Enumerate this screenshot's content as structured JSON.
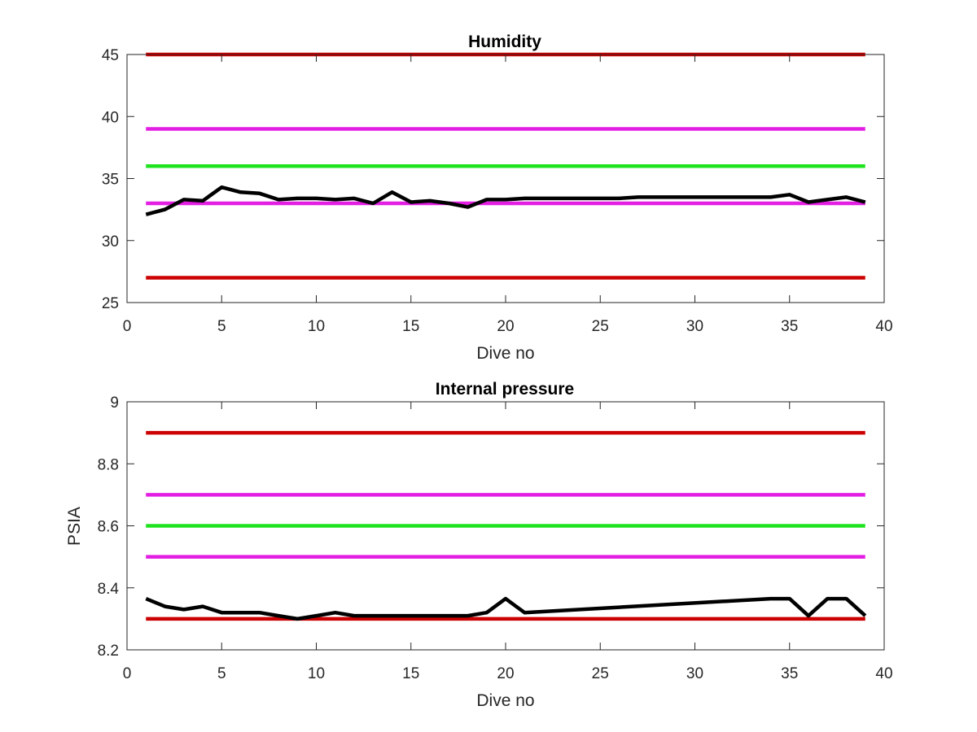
{
  "figure": {
    "background": "#ffffff"
  },
  "chart_data": [
    {
      "type": "line",
      "title": "Humidity",
      "xlabel": "Dive no",
      "ylabel": "",
      "xlim": [
        0,
        40
      ],
      "ylim": [
        25,
        45
      ],
      "xticks": [
        0,
        5,
        10,
        15,
        20,
        25,
        30,
        35,
        40
      ],
      "yticks": [
        25,
        30,
        35,
        40,
        45
      ],
      "grid": false,
      "legend": "none",
      "thresholds": [
        {
          "value": 45,
          "x_range": [
            1,
            39
          ],
          "color": "#cc0000"
        },
        {
          "value": 39,
          "x_range": [
            1,
            39
          ],
          "color": "#e31ee3"
        },
        {
          "value": 36,
          "x_range": [
            1,
            39
          ],
          "color": "#1ee31e"
        },
        {
          "value": 33,
          "x_range": [
            1,
            39
          ],
          "color": "#e31ee3"
        },
        {
          "value": 27,
          "x_range": [
            1,
            39
          ],
          "color": "#cc0000"
        }
      ],
      "series": [
        {
          "color": "#000000",
          "x": [
            1,
            2,
            3,
            4,
            5,
            6,
            7,
            8,
            9,
            10,
            11,
            12,
            13,
            14,
            15,
            16,
            17,
            18,
            19,
            20,
            21,
            22,
            23,
            24,
            25,
            26,
            27,
            28,
            29,
            30,
            31,
            32,
            33,
            34,
            35,
            36,
            37,
            38,
            39
          ],
          "y": [
            32.1,
            32.5,
            33.3,
            33.2,
            34.3,
            33.9,
            33.8,
            33.3,
            33.4,
            33.4,
            33.3,
            33.4,
            33.0,
            33.9,
            33.1,
            33.2,
            33.0,
            32.7,
            33.3,
            33.3,
            33.4,
            33.4,
            33.4,
            33.4,
            33.4,
            33.4,
            33.5,
            33.5,
            33.5,
            33.5,
            33.5,
            33.5,
            33.5,
            33.5,
            33.7,
            33.1,
            33.3,
            33.5,
            33.1
          ]
        }
      ]
    },
    {
      "type": "line",
      "title": "Internal pressure",
      "xlabel": "Dive no",
      "ylabel": "PSIA",
      "xlim": [
        0,
        40
      ],
      "ylim": [
        8.2,
        9.0
      ],
      "xticks": [
        0,
        5,
        10,
        15,
        20,
        25,
        30,
        35,
        40
      ],
      "yticks": [
        8.2,
        8.4,
        8.6,
        8.8,
        9
      ],
      "ytick_labels": [
        "8.2",
        "8.4",
        "8.6",
        "8.8",
        "9"
      ],
      "grid": false,
      "legend": "none",
      "thresholds": [
        {
          "value": 8.9,
          "x_range": [
            1,
            39
          ],
          "color": "#cc0000"
        },
        {
          "value": 8.7,
          "x_range": [
            1,
            39
          ],
          "color": "#e31ee3"
        },
        {
          "value": 8.6,
          "x_range": [
            1,
            39
          ],
          "color": "#1ee31e"
        },
        {
          "value": 8.5,
          "x_range": [
            1,
            39
          ],
          "color": "#e31ee3"
        },
        {
          "value": 8.3,
          "x_range": [
            1,
            39
          ],
          "color": "#cc0000"
        }
      ],
      "series": [
        {
          "color": "#000000",
          "x": [
            1,
            2,
            3,
            4,
            5,
            6,
            7,
            8,
            9,
            10,
            11,
            12,
            13,
            14,
            15,
            16,
            17,
            18,
            19,
            20,
            21,
            34,
            35,
            36,
            37,
            38,
            39
          ],
          "y": [
            8.365,
            8.34,
            8.33,
            8.34,
            8.32,
            8.32,
            8.32,
            8.31,
            8.3,
            8.31,
            8.32,
            8.31,
            8.31,
            8.31,
            8.31,
            8.31,
            8.31,
            8.31,
            8.32,
            8.365,
            8.32,
            8.365,
            8.365,
            8.31,
            8.365,
            8.365,
            8.31
          ]
        }
      ]
    }
  ]
}
